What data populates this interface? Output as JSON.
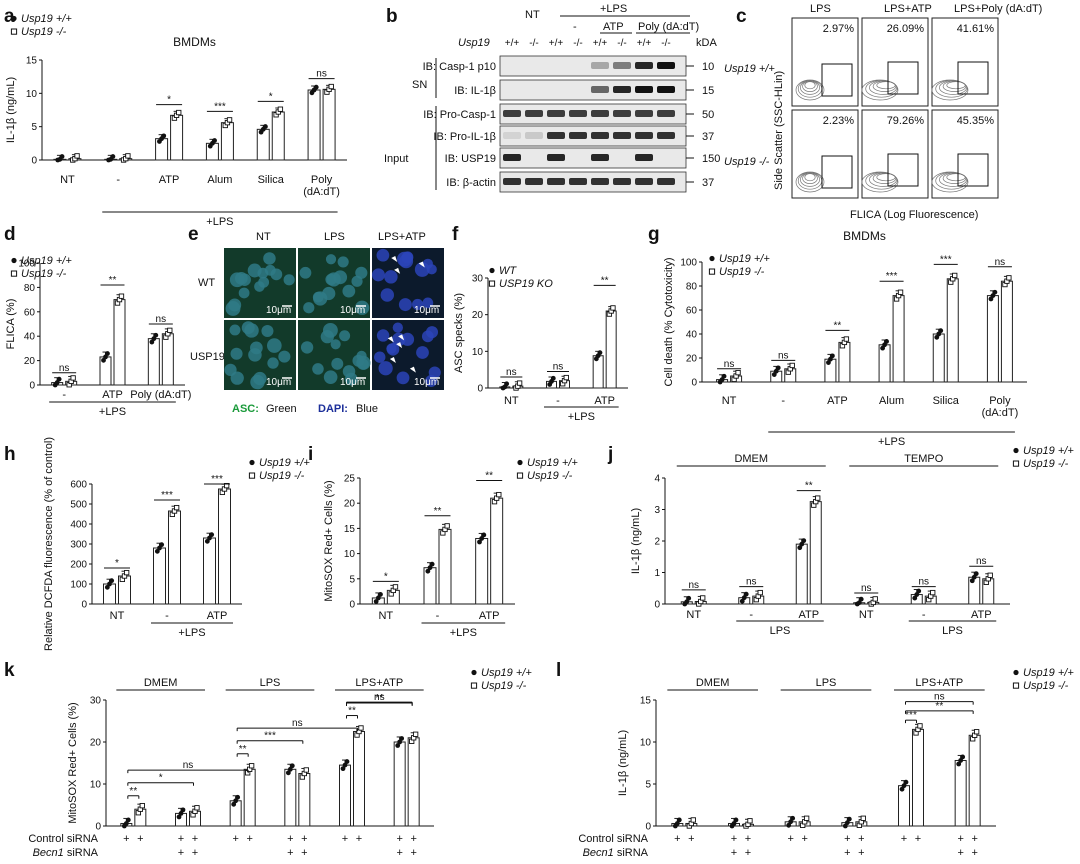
{
  "figure": {
    "panels": [
      "a",
      "b",
      "c",
      "d",
      "e",
      "f",
      "g",
      "h",
      "i",
      "j",
      "k",
      "l"
    ]
  },
  "legend": {
    "usp19_wt": "Usp19 +/+",
    "usp19_ko": "Usp19 -/-",
    "wt": "WT",
    "ko": "USP19 KO"
  },
  "blot": {
    "header_lps": "+LPS",
    "conditions": [
      "NT",
      "-",
      "ATP",
      "Poly (dA:dT)"
    ],
    "genotype_label": "Usp19",
    "genotypes": [
      "+/+",
      "-/-",
      "+/+",
      "-/-",
      "+/+",
      "-/-",
      "+/+",
      "-/-"
    ],
    "kda": "kDA",
    "sn_label": "SN",
    "input_label": "Input",
    "rows": [
      {
        "label": "IB: Casp-1 p10",
        "kda": "10"
      },
      {
        "label": "IB: IL-1β",
        "kda": "15"
      },
      {
        "label": "IB: Pro-Casp-1",
        "kda": "50"
      },
      {
        "label": "IB: Pro-IL-1β",
        "kda": "37"
      },
      {
        "label": "IB: USP19",
        "kda": "150"
      },
      {
        "label": "IB: β-actin",
        "kda": "37"
      }
    ]
  },
  "flow": {
    "columns": [
      "LPS",
      "LPS+ATP",
      "LPS+Poly (dA:dT)"
    ],
    "rows": [
      "Usp19 +/+",
      "Usp19 -/-"
    ],
    "percents": [
      [
        "2.97%",
        "26.09%",
        "41.61%"
      ],
      [
        "2.23%",
        "79.26%",
        "45.35%"
      ]
    ],
    "ylabel": "Side Scatter (SSC-HLin)",
    "xlabel": "FLICA (Log Fluorescence)"
  },
  "micro": {
    "columns": [
      "NT",
      "LPS",
      "LPS+ATP"
    ],
    "rows": [
      "WT",
      "USP19 KO"
    ],
    "scale": "10μm",
    "stain_asc_key": "ASC:",
    "stain_asc_val": "Green",
    "stain_dapi_key": "DAPI:",
    "stain_dapi_val": "Blue"
  },
  "chart_data": [
    {
      "panel": "a",
      "type": "bar",
      "title": "BMDMs",
      "ylabel": "IL-1β (ng/mL)",
      "ylim": [
        0,
        15
      ],
      "yticks": [
        0,
        5,
        10,
        15
      ],
      "categories": [
        "NT",
        "-",
        "ATP",
        "Alum",
        "Silica",
        "Poly (dA:dT)"
      ],
      "group_label": "+LPS",
      "series": [
        {
          "name": "Usp19 +/+",
          "values": [
            0.1,
            0.1,
            3.2,
            2.5,
            4.6,
            10.5
          ]
        },
        {
          "name": "Usp19 -/-",
          "values": [
            0.2,
            0.2,
            6.7,
            5.6,
            7.2,
            10.6
          ]
        }
      ],
      "significance": [
        "",
        "",
        "*",
        "***",
        "*",
        "ns"
      ]
    },
    {
      "panel": "d",
      "type": "bar",
      "title": "",
      "ylabel": "FLICA (%)",
      "ylim": [
        0,
        100
      ],
      "yticks": [
        0,
        20,
        40,
        60,
        80,
        100
      ],
      "categories": [
        "-",
        "ATP",
        "Poly (dA:dT)"
      ],
      "group_label": "+LPS",
      "series": [
        {
          "name": "Usp19 +/+",
          "values": [
            2,
            23,
            38
          ]
        },
        {
          "name": "Usp19 -/-",
          "values": [
            3,
            70,
            42
          ]
        }
      ],
      "significance": [
        "ns",
        "**",
        "ns"
      ]
    },
    {
      "panel": "f",
      "type": "bar",
      "title": "",
      "ylabel": "ASC specks (%)",
      "ylim": [
        0,
        30
      ],
      "yticks": [
        0,
        10,
        20,
        30
      ],
      "categories": [
        "NT",
        "-",
        "ATP"
      ],
      "group_label": "+LPS",
      "series": [
        {
          "name": "WT",
          "values": [
            0.3,
            1.8,
            8.8
          ]
        },
        {
          "name": "USP19 KO",
          "values": [
            0.5,
            2.0,
            21
          ]
        }
      ],
      "significance": [
        "ns",
        "ns",
        "**"
      ]
    },
    {
      "panel": "g",
      "type": "bar",
      "title": "BMDMs",
      "ylabel": "Cell death (% Cytotoxicity)",
      "ylim": [
        0,
        100
      ],
      "yticks": [
        0,
        20,
        40,
        60,
        80,
        100
      ],
      "categories": [
        "NT",
        "-",
        "ATP",
        "Alum",
        "Silica",
        "Poly (dA:dT)"
      ],
      "group_label": "+LPS",
      "series": [
        {
          "name": "Usp19 +/+",
          "values": [
            2,
            9,
            19,
            31,
            40,
            72
          ]
        },
        {
          "name": "Usp19 -/-",
          "values": [
            5,
            11,
            33,
            72,
            86,
            84
          ]
        }
      ],
      "significance": [
        "ns",
        "ns",
        "**",
        "***",
        "***",
        "ns"
      ]
    },
    {
      "panel": "h",
      "type": "bar",
      "title": "",
      "ylabel": "Relative DCFDA fluorescence (% of control)",
      "ylim": [
        0,
        600
      ],
      "yticks": [
        0,
        100,
        200,
        300,
        400,
        500,
        600
      ],
      "categories": [
        "NT",
        "-",
        "ATP"
      ],
      "group_label": "+LPS",
      "series": [
        {
          "name": "Usp19 +/+",
          "values": [
            100,
            280,
            330
          ]
        },
        {
          "name": "Usp19 -/-",
          "values": [
            140,
            465,
            575
          ]
        }
      ],
      "significance": [
        "*",
        "***",
        "***"
      ]
    },
    {
      "panel": "i",
      "type": "bar",
      "title": "",
      "ylabel": "MitoSOX Red+ Cells (%)",
      "ylim": [
        0,
        25
      ],
      "yticks": [
        0,
        5,
        10,
        15,
        20,
        25
      ],
      "categories": [
        "NT",
        "-",
        "ATP"
      ],
      "group_label": "+LPS",
      "series": [
        {
          "name": "Usp19 +/+",
          "values": [
            1.2,
            7.2,
            13
          ]
        },
        {
          "name": "Usp19 -/-",
          "values": [
            2.7,
            14.8,
            21
          ]
        }
      ],
      "significance": [
        "*",
        "**",
        "**"
      ]
    },
    {
      "panel": "j",
      "type": "bar",
      "title": "",
      "ylabel": "IL-1β (ng/mL)",
      "ylim": [
        0,
        4
      ],
      "yticks": [
        0,
        1,
        2,
        3,
        4
      ],
      "headers": [
        "DMEM",
        "TEMPO"
      ],
      "categories": [
        "NT",
        "-",
        "ATP",
        "NT",
        "-",
        "ATP"
      ],
      "group_labels": [
        "LPS",
        "LPS"
      ],
      "series": [
        {
          "name": "Usp19 +/+",
          "values": [
            0.07,
            0.2,
            1.9,
            0.04,
            0.3,
            0.85
          ]
        },
        {
          "name": "Usp19 -/-",
          "values": [
            0.08,
            0.25,
            3.25,
            0.05,
            0.25,
            0.8
          ]
        }
      ],
      "significance": [
        "ns",
        "ns",
        "**",
        "ns",
        "ns",
        "ns"
      ]
    },
    {
      "panel": "k",
      "type": "bar",
      "title": "",
      "ylabel": "MitoSOX Red+ Cells (%)",
      "ylim": [
        0,
        30
      ],
      "yticks": [
        0,
        10,
        20,
        30
      ],
      "headers": [
        "DMEM",
        "LPS",
        "LPS+ATP"
      ],
      "series": [
        {
          "name": "Usp19 +/+",
          "values": [
            0.6,
            3.0,
            6.0,
            13.5,
            14.5,
            20.0
          ]
        },
        {
          "name": "Usp19 -/-",
          "values": [
            4.0,
            3.5,
            13.5,
            12.5,
            22.5,
            21.0
          ]
        }
      ],
      "significance": [
        "**",
        "*",
        "ns",
        "**",
        "***",
        "ns",
        "**",
        "**",
        "ns"
      ],
      "siRNA_labels": [
        "Control siRNA",
        "Becn1 siRNA"
      ]
    },
    {
      "panel": "l",
      "type": "bar",
      "title": "",
      "ylabel": "IL-1β (ng/mL)",
      "ylim": [
        0,
        15
      ],
      "yticks": [
        0,
        5,
        10,
        15
      ],
      "headers": [
        "DMEM",
        "LPS",
        "LPS+ATP"
      ],
      "series": [
        {
          "name": "Usp19 +/+",
          "values": [
            0.3,
            0.3,
            0.5,
            0.4,
            4.8,
            7.8
          ]
        },
        {
          "name": "Usp19 -/-",
          "values": [
            0.3,
            0.2,
            0.5,
            0.5,
            11.5,
            10.8
          ]
        }
      ],
      "significance": [
        "***",
        "**",
        "ns"
      ],
      "siRNA_labels": [
        "Control siRNA",
        "Becn1 siRNA"
      ]
    }
  ]
}
